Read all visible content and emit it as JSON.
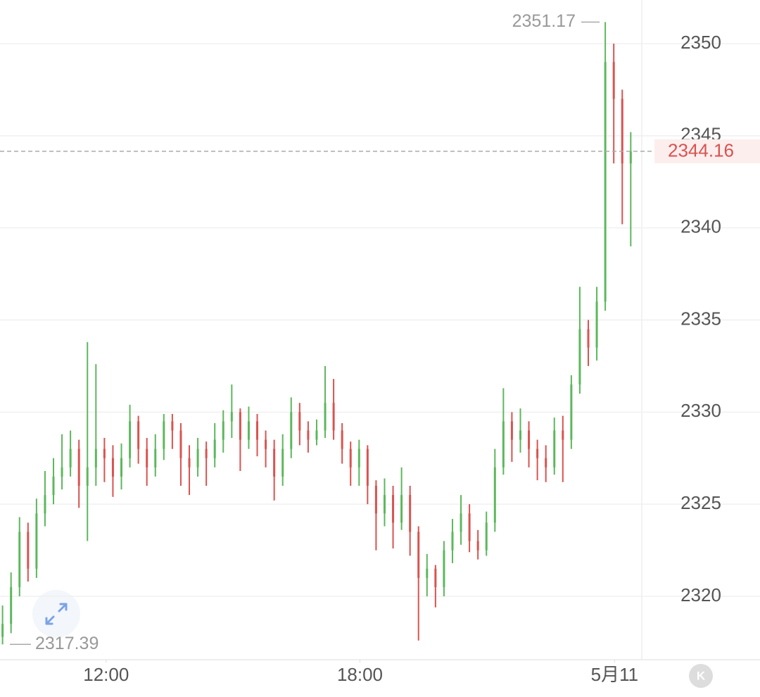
{
  "chart_data": {
    "type": "candlestick",
    "open": [
      2317.8,
      2318.5,
      2320.5,
      2323.5,
      2321.5,
      2324.5,
      2325.5,
      2326.5,
      2327.0,
      2328.0,
      2326.0,
      2327.0,
      2328.0,
      2327.5,
      2326.5,
      2327.5,
      2329.5,
      2328.0,
      2327.0,
      2328.0,
      2329.5,
      2329.0,
      2327.5,
      2327.0,
      2328.0,
      2327.5,
      2328.5,
      2329.5,
      2330.0,
      2328.5,
      2329.5,
      2328.5,
      2328.0,
      2326.5,
      2328.0,
      2330.0,
      2329.0,
      2328.5,
      2329.0,
      2330.5,
      2329.0,
      2328.0,
      2327.0,
      2328.0,
      2326.0,
      2324.5,
      2325.5,
      2324.0,
      2325.5,
      2323.5,
      2321.0,
      2321.5,
      2320.5,
      2322.5,
      2323.5,
      2324.5,
      2323.0,
      2322.5,
      2324.0,
      2327.0,
      2329.5,
      2328.5,
      2329.0,
      2328.0,
      2327.5,
      2327.0,
      2329.0,
      2328.5,
      2331.5,
      2334.5,
      2333.5,
      2336.0,
      2349.0,
      2347.0,
      2343.5
    ],
    "high": [
      2319.5,
      2321.3,
      2324.3,
      2324.0,
      2325.3,
      2326.8,
      2327.5,
      2328.8,
      2329.0,
      2328.5,
      2333.8,
      2332.6,
      2328.6,
      2328.2,
      2328.3,
      2330.4,
      2329.8,
      2328.6,
      2328.8,
      2329.9,
      2329.9,
      2329.4,
      2328.2,
      2328.6,
      2328.4,
      2329.4,
      2330.1,
      2331.5,
      2330.2,
      2330.3,
      2329.9,
      2329.0,
      2328.5,
      2328.8,
      2330.8,
      2330.5,
      2329.5,
      2329.6,
      2332.5,
      2331.8,
      2329.4,
      2328.4,
      2328.5,
      2328.2,
      2326.3,
      2326.4,
      2326.0,
      2327.0,
      2326.0,
      2323.8,
      2322.3,
      2321.7,
      2323.0,
      2324.2,
      2325.5,
      2325.0,
      2323.6,
      2324.6,
      2328.0,
      2331.3,
      2330.0,
      2330.2,
      2329.5,
      2328.5,
      2328.2,
      2329.7,
      2329.8,
      2332.0,
      2336.8,
      2335.0,
      2336.8,
      2351.17,
      2350.0,
      2347.5,
      2345.2
    ],
    "low": [
      2317.39,
      2318.0,
      2320.0,
      2320.8,
      2321.0,
      2323.8,
      2325.0,
      2325.8,
      2326.5,
      2324.8,
      2323.0,
      2326.0,
      2326.2,
      2325.4,
      2325.8,
      2327.0,
      2327.2,
      2326.0,
      2326.5,
      2327.4,
      2328.0,
      2326.0,
      2325.5,
      2326.5,
      2326.0,
      2327.0,
      2327.8,
      2328.6,
      2326.8,
      2328.0,
      2327.6,
      2327.0,
      2325.2,
      2326.0,
      2327.5,
      2328.2,
      2327.8,
      2328.2,
      2328.6,
      2328.5,
      2327.2,
      2326.0,
      2326.0,
      2325.0,
      2322.5,
      2323.8,
      2322.6,
      2323.6,
      2322.2,
      2317.6,
      2320.0,
      2319.4,
      2320.0,
      2321.8,
      2322.8,
      2322.4,
      2322.0,
      2322.2,
      2323.5,
      2326.6,
      2327.3,
      2327.8,
      2327.0,
      2326.3,
      2326.2,
      2326.6,
      2326.2,
      2328.0,
      2331.0,
      2332.5,
      2332.8,
      2335.5,
      2343.5,
      2340.2,
      2339.0
    ],
    "close": [
      2318.5,
      2320.5,
      2323.5,
      2321.5,
      2324.5,
      2325.5,
      2326.5,
      2327.0,
      2328.0,
      2326.0,
      2327.0,
      2328.0,
      2327.5,
      2326.5,
      2327.5,
      2329.5,
      2328.0,
      2327.0,
      2328.0,
      2329.5,
      2329.0,
      2327.5,
      2327.0,
      2328.0,
      2327.5,
      2328.5,
      2329.5,
      2330.0,
      2328.5,
      2329.5,
      2328.5,
      2328.0,
      2326.5,
      2328.0,
      2330.0,
      2329.0,
      2328.5,
      2329.0,
      2330.5,
      2329.0,
      2328.0,
      2327.0,
      2328.0,
      2326.0,
      2324.5,
      2325.5,
      2324.0,
      2325.5,
      2323.5,
      2321.0,
      2321.5,
      2320.5,
      2322.5,
      2323.5,
      2324.5,
      2323.0,
      2322.5,
      2324.0,
      2327.0,
      2329.5,
      2328.5,
      2329.0,
      2328.0,
      2327.5,
      2327.0,
      2329.0,
      2328.5,
      2331.5,
      2334.5,
      2333.5,
      2336.0,
      2349.0,
      2347.0,
      2343.5,
      2344.16
    ],
    "up_color": "#5cb85c",
    "down_color": "#d9534f",
    "xlim": [
      -0.3,
      75.3
    ],
    "xticks": [
      {
        "value": 12.2,
        "label": "12:00"
      },
      {
        "value": 42.1,
        "label": "18:00"
      },
      {
        "value": 72.1,
        "label": "5月11"
      }
    ],
    "ylim": [
      2316.56,
      2352.37
    ],
    "yticks": [
      2320,
      2325,
      2330,
      2335,
      2340,
      2345,
      2350
    ],
    "grid": true,
    "max_label": 2351.17,
    "min_label": 2317.39,
    "last_price": 2344.16,
    "kline_button": "K"
  }
}
